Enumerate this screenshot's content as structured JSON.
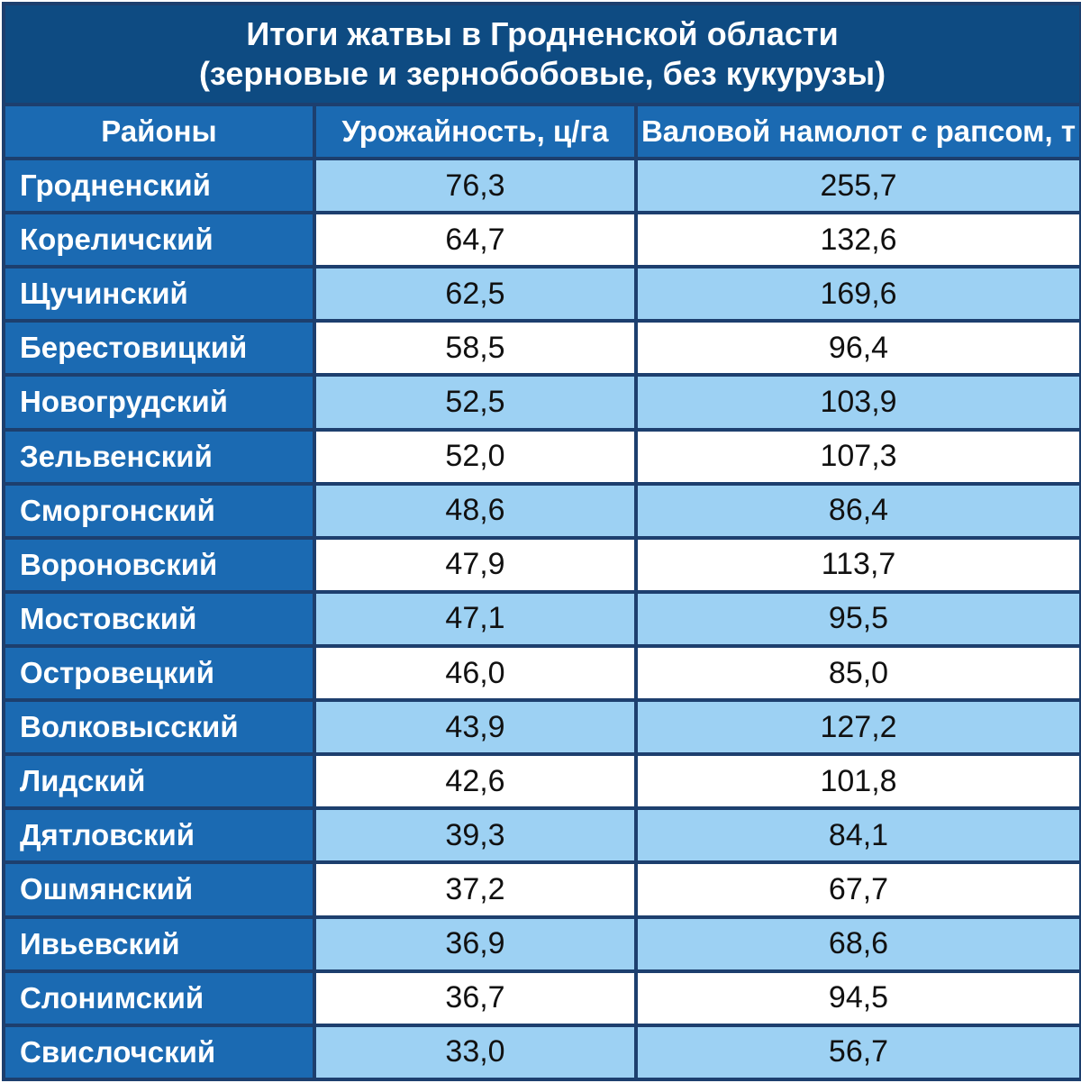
{
  "title_line1": "Итоги жатвы в Гродненской области",
  "title_line2": "(зерновые и зернобобовые, без кукурузы)",
  "columns": [
    "Районы",
    "Урожайность, ц/га",
    "Валовой намолот с рапсом, т"
  ],
  "colors": {
    "title_bg": "#0e4b82",
    "header_bg": "#1b6ab2",
    "stripe": "#9dd1f3",
    "border": "#1d3f6e"
  },
  "rows": [
    {
      "district": "Гродненский",
      "yield": "76,3",
      "harvest": "255,7"
    },
    {
      "district": "Кореличский",
      "yield": "64,7",
      "harvest": "132,6"
    },
    {
      "district": "Щучинский",
      "yield": "62,5",
      "harvest": "169,6"
    },
    {
      "district": "Берестовицкий",
      "yield": "58,5",
      "harvest": "96,4"
    },
    {
      "district": "Новогрудский",
      "yield": "52,5",
      "harvest": "103,9"
    },
    {
      "district": "Зельвенский",
      "yield": "52,0",
      "harvest": "107,3"
    },
    {
      "district": "Сморгонский",
      "yield": "48,6",
      "harvest": "86,4"
    },
    {
      "district": "Вороновский",
      "yield": "47,9",
      "harvest": "113,7"
    },
    {
      "district": "Мостовский",
      "yield": "47,1",
      "harvest": "95,5"
    },
    {
      "district": "Островецкий",
      "yield": "46,0",
      "harvest": "85,0"
    },
    {
      "district": "Волковысский",
      "yield": "43,9",
      "harvest": "127,2"
    },
    {
      "district": "Лидский",
      "yield": "42,6",
      "harvest": "101,8"
    },
    {
      "district": "Дятловский",
      "yield": "39,3",
      "harvest": "84,1"
    },
    {
      "district": "Ошмянский",
      "yield": "37,2",
      "harvest": "67,7"
    },
    {
      "district": "Ивьевский",
      "yield": "36,9",
      "harvest": "68,6"
    },
    {
      "district": "Слонимский",
      "yield": "36,7",
      "harvest": "94,5"
    },
    {
      "district": "Свислочский",
      "yield": "33,0",
      "harvest": "56,7"
    }
  ],
  "chart_data": {
    "type": "table",
    "title": "Итоги жатвы в Гродненской области",
    "subtitle": "(зерновые и зернобобовые, без кукурузы)",
    "columns": [
      "Районы",
      "Урожайность, ц/га",
      "Валовой намолот с рапсом, т"
    ],
    "categories": [
      "Гродненский",
      "Кореличский",
      "Щучинский",
      "Берестовицкий",
      "Новогрудский",
      "Зельвенский",
      "Сморгонский",
      "Вороновский",
      "Мостовский",
      "Островецкий",
      "Волковысский",
      "Лидский",
      "Дятловский",
      "Ошмянский",
      "Ивьевский",
      "Слонимский",
      "Свислочский"
    ],
    "series": [
      {
        "name": "Урожайность, ц/га",
        "values": [
          76.3,
          64.7,
          62.5,
          58.5,
          52.5,
          52.0,
          48.6,
          47.9,
          47.1,
          46.0,
          43.9,
          42.6,
          39.3,
          37.2,
          36.9,
          36.7,
          33.0
        ]
      },
      {
        "name": "Валовой намолот с рапсом, т",
        "values": [
          255.7,
          132.6,
          169.6,
          96.4,
          103.9,
          107.3,
          86.4,
          113.7,
          95.5,
          85.0,
          127.2,
          101.8,
          84.1,
          67.7,
          68.6,
          94.5,
          56.7
        ]
      }
    ]
  }
}
